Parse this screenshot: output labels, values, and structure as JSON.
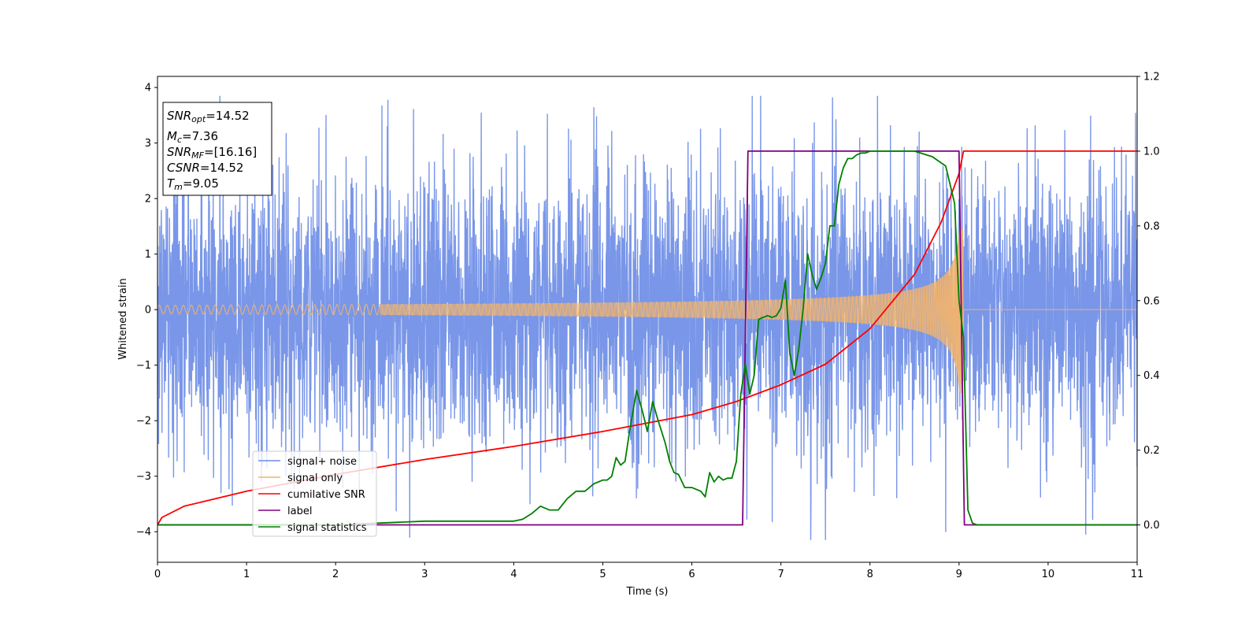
{
  "chart_data": {
    "type": "line",
    "title": "",
    "xlabel": "Time (s)",
    "ylabel": "Whitened strain",
    "ylabel_right": "",
    "xlim": [
      0,
      11
    ],
    "ylim_left": [
      -4.55,
      4.2
    ],
    "ylim_right": [
      -0.1,
      1.2
    ],
    "x_ticks": [
      0,
      1,
      2,
      3,
      4,
      5,
      6,
      7,
      8,
      9,
      10,
      11
    ],
    "y_ticks_left": [
      -4,
      -3,
      -2,
      -1,
      0,
      1,
      2,
      3,
      4
    ],
    "y_ticks_right": [
      0.0,
      0.2,
      0.4,
      0.6,
      0.8,
      1.0,
      1.2
    ],
    "grid": false,
    "legend_position": "lower-left",
    "info_box": {
      "snr_opt": {
        "base": "SNR",
        "sub": "opt",
        "value": "=14.52"
      },
      "mc": {
        "base": "M",
        "sub": "c",
        "value": "=7.36"
      },
      "snr_mf": {
        "base": "SNR",
        "sub": "MF",
        "value": "=[16.16]"
      },
      "csnr": {
        "base": "CSNR",
        "sub": "",
        "value": "=14.52"
      },
      "tm": {
        "base": "T",
        "sub": "m",
        "value": "=9.05"
      }
    },
    "series": [
      {
        "name": "signal+ noise",
        "color": "#6a8be6",
        "axis": "left",
        "style": "noise",
        "noise_sigma": 1.0,
        "x_range": [
          0,
          11
        ]
      },
      {
        "name": "signal only",
        "color": "#f2b46d",
        "axis": "left",
        "style": "chirp",
        "merger_time": 9.05,
        "amplitude_start": 0.08,
        "amplitude_peak": 1.5
      },
      {
        "name": "cumilative SNR",
        "color": "#ff0000",
        "axis": "right",
        "x": [
          0,
          0.05,
          0.3,
          1,
          2,
          3,
          4,
          5,
          6,
          6.5,
          7,
          7.5,
          8,
          8.5,
          8.8,
          9.0,
          9.05,
          11
        ],
        "y": [
          0.0,
          0.02,
          0.05,
          0.09,
          0.135,
          0.175,
          0.21,
          0.25,
          0.295,
          0.33,
          0.375,
          0.43,
          0.525,
          0.67,
          0.81,
          0.94,
          1.0,
          1.0
        ]
      },
      {
        "name": "label",
        "color": "#800080",
        "axis": "right",
        "x": [
          0,
          6.57,
          6.63,
          9.0,
          9.06,
          11
        ],
        "y": [
          0.0,
          0.0,
          1.0,
          1.0,
          0.0,
          0.0
        ]
      },
      {
        "name": "signal statistics",
        "color": "#008000",
        "axis": "right",
        "x": [
          0,
          0.5,
          1,
          2,
          2.5,
          3,
          3.5,
          4,
          4.1,
          4.2,
          4.3,
          4.4,
          4.5,
          4.6,
          4.7,
          4.8,
          4.9,
          5.0,
          5.05,
          5.1,
          5.15,
          5.2,
          5.25,
          5.3,
          5.38,
          5.45,
          5.5,
          5.56,
          5.62,
          5.7,
          5.75,
          5.8,
          5.85,
          5.92,
          6.0,
          6.1,
          6.15,
          6.2,
          6.25,
          6.3,
          6.35,
          6.4,
          6.45,
          6.5,
          6.55,
          6.6,
          6.65,
          6.7,
          6.75,
          6.8,
          6.85,
          6.9,
          6.95,
          7.0,
          7.05,
          7.1,
          7.15,
          7.2,
          7.25,
          7.3,
          7.35,
          7.4,
          7.45,
          7.5,
          7.55,
          7.6,
          7.65,
          7.7,
          7.75,
          7.8,
          7.85,
          7.9,
          7.95,
          8.0,
          8.1,
          8.2,
          8.3,
          8.5,
          8.7,
          8.85,
          8.95,
          9.0,
          9.05,
          9.1,
          9.15,
          9.2,
          9.3,
          11
        ],
        "y": [
          0.0,
          0.0,
          0.0,
          0.0,
          0.005,
          0.01,
          0.01,
          0.01,
          0.015,
          0.03,
          0.05,
          0.04,
          0.04,
          0.07,
          0.09,
          0.09,
          0.11,
          0.12,
          0.12,
          0.13,
          0.18,
          0.16,
          0.17,
          0.25,
          0.36,
          0.3,
          0.25,
          0.33,
          0.28,
          0.22,
          0.17,
          0.14,
          0.135,
          0.1,
          0.1,
          0.09,
          0.075,
          0.14,
          0.115,
          0.13,
          0.12,
          0.125,
          0.125,
          0.17,
          0.35,
          0.43,
          0.35,
          0.4,
          0.55,
          0.555,
          0.56,
          0.555,
          0.56,
          0.58,
          0.655,
          0.46,
          0.4,
          0.47,
          0.58,
          0.725,
          0.67,
          0.63,
          0.66,
          0.7,
          0.8,
          0.8,
          0.91,
          0.955,
          0.98,
          0.98,
          0.99,
          0.995,
          0.995,
          1.0,
          1.0,
          1.0,
          1.0,
          1.0,
          0.985,
          0.96,
          0.86,
          0.6,
          0.5,
          0.04,
          0.005,
          0.0,
          0.0,
          0.0
        ]
      }
    ]
  }
}
